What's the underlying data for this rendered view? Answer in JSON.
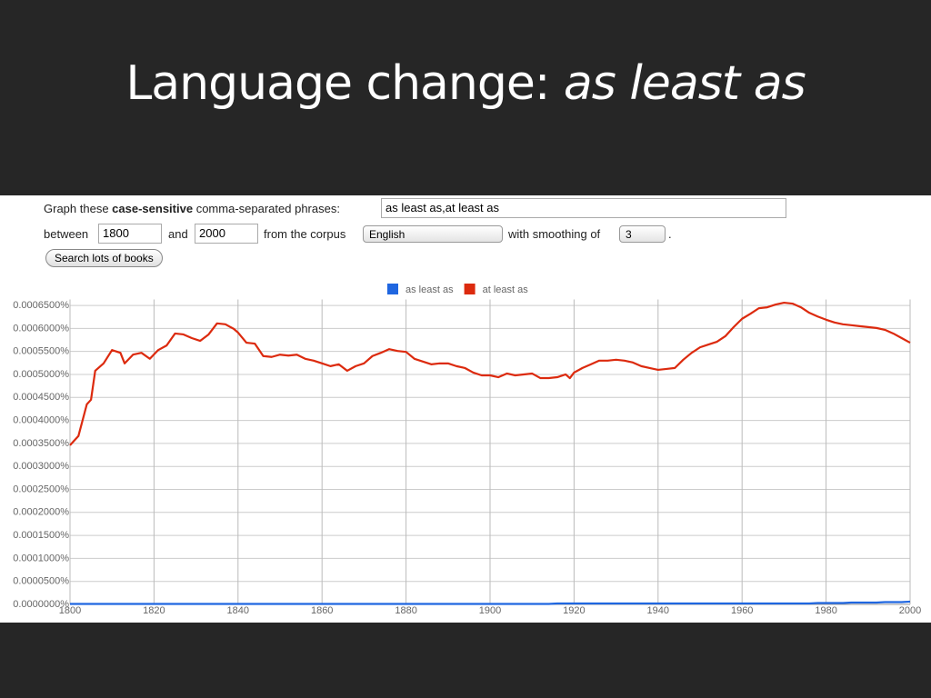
{
  "slide": {
    "title": "Language change:",
    "title_emphasis": "as least as"
  },
  "form": {
    "label_start": "Graph these",
    "label_bold": "case-sensitive",
    "label_end": "comma-separated phrases:",
    "phrases": "as least as,at least as",
    "between": "between",
    "from_year": "1800",
    "and": "and",
    "to_year": "2000",
    "corpus_label": "from the corpus",
    "corpus": "English",
    "smoothing_label": "with smoothing of",
    "smoothing": "3",
    "period": ".",
    "button": "Search lots of books"
  },
  "chart_data": {
    "type": "line",
    "x": [
      1800,
      1802,
      1804,
      1805,
      1806,
      1808,
      1810,
      1812,
      1813,
      1815,
      1817,
      1819,
      1821,
      1823,
      1825,
      1827,
      1829,
      1831,
      1833,
      1835,
      1837,
      1839,
      1840,
      1842,
      1844,
      1846,
      1848,
      1850,
      1852,
      1854,
      1856,
      1858,
      1860,
      1862,
      1864,
      1866,
      1868,
      1870,
      1872,
      1874,
      1876,
      1878,
      1880,
      1882,
      1884,
      1886,
      1888,
      1890,
      1892,
      1894,
      1896,
      1898,
      1900,
      1902,
      1904,
      1906,
      1908,
      1910,
      1912,
      1914,
      1916,
      1918,
      1919,
      1920,
      1922,
      1924,
      1926,
      1928,
      1930,
      1932,
      1934,
      1936,
      1938,
      1940,
      1942,
      1944,
      1946,
      1948,
      1950,
      1952,
      1954,
      1956,
      1958,
      1960,
      1962,
      1964,
      1966,
      1968,
      1970,
      1972,
      1974,
      1976,
      1978,
      1980,
      1982,
      1984,
      1986,
      1988,
      1990,
      1992,
      1994,
      1996,
      1998,
      2000
    ],
    "series": [
      {
        "name": "as least as",
        "color": "#1f66e0",
        "values": [
          1e-06,
          1e-06,
          1e-06,
          1e-06,
          1e-06,
          1e-06,
          1e-06,
          1e-06,
          1e-06,
          1e-06,
          1e-06,
          1e-06,
          1e-06,
          1e-06,
          1e-06,
          1e-06,
          1e-06,
          1e-06,
          1e-06,
          1e-06,
          1e-06,
          1e-06,
          1e-06,
          1e-06,
          1e-06,
          1e-06,
          1e-06,
          1e-06,
          1e-06,
          1e-06,
          1e-06,
          1e-06,
          1e-06,
          1e-06,
          1e-06,
          1e-06,
          1e-06,
          1e-06,
          1e-06,
          1e-06,
          1e-06,
          1e-06,
          1e-06,
          1e-06,
          1e-06,
          1e-06,
          1e-06,
          1e-06,
          1e-06,
          1e-06,
          1e-06,
          1e-06,
          1e-06,
          1e-06,
          1e-06,
          1e-06,
          1e-06,
          1e-06,
          1e-06,
          1e-06,
          2e-06,
          2e-06,
          2e-06,
          2e-06,
          2e-06,
          2e-06,
          2e-06,
          2e-06,
          2e-06,
          2e-06,
          2e-06,
          2e-06,
          2e-06,
          2e-06,
          2e-06,
          2e-06,
          2e-06,
          2e-06,
          2e-06,
          2e-06,
          2e-06,
          2e-06,
          2e-06,
          2e-06,
          2e-06,
          2e-06,
          2e-06,
          2e-06,
          2e-06,
          2e-06,
          2e-06,
          2e-06,
          3e-06,
          3e-06,
          3e-06,
          3e-06,
          4e-06,
          4e-06,
          4e-06,
          4e-06,
          5e-06,
          5e-06,
          5e-06,
          6e-06
        ]
      },
      {
        "name": "at least as",
        "color": "#dc2a0e",
        "values": [
          0.000346,
          0.000366,
          0.000435,
          0.000445,
          0.000508,
          0.000524,
          0.000553,
          0.000547,
          0.000524,
          0.000543,
          0.000547,
          0.000534,
          0.000553,
          0.000563,
          0.000589,
          0.000587,
          0.000579,
          0.000573,
          0.000587,
          0.000611,
          0.000609,
          0.000599,
          0.000591,
          0.000569,
          0.000567,
          0.00054,
          0.000538,
          0.000543,
          0.000541,
          0.000543,
          0.000534,
          0.00053,
          0.000524,
          0.000518,
          0.000522,
          0.000508,
          0.000518,
          0.000524,
          0.00054,
          0.000547,
          0.000555,
          0.000551,
          0.000549,
          0.000534,
          0.000528,
          0.000522,
          0.000524,
          0.000524,
          0.000518,
          0.000514,
          0.000504,
          0.000498,
          0.000498,
          0.000494,
          0.000502,
          0.000498,
          0.0005,
          0.000502,
          0.000492,
          0.000492,
          0.000494,
          0.0005,
          0.000492,
          0.000504,
          0.000514,
          0.000522,
          0.00053,
          0.00053,
          0.000532,
          0.00053,
          0.000526,
          0.000518,
          0.000514,
          0.00051,
          0.000512,
          0.000514,
          0.000532,
          0.000547,
          0.000559,
          0.000565,
          0.000571,
          0.000583,
          0.000603,
          0.000621,
          0.000632,
          0.000644,
          0.000646,
          0.000652,
          0.000656,
          0.000654,
          0.000646,
          0.000634,
          0.000626,
          0.000619,
          0.000613,
          0.000609,
          0.000607,
          0.000605,
          0.000603,
          0.000601,
          0.000597,
          0.000589,
          0.000579,
          0.000569
        ]
      }
    ],
    "xlim": [
      1800,
      2000
    ],
    "xticks": [
      1800,
      1820,
      1840,
      1860,
      1880,
      1900,
      1920,
      1940,
      1960,
      1980,
      2000
    ],
    "ylim": [
      0,
      0.000663
    ],
    "yticks": [
      {
        "value": 0,
        "label": "0.0000000%"
      },
      {
        "value": 5e-05,
        "label": "0.0000500%"
      },
      {
        "value": 0.0001,
        "label": "0.0001000%"
      },
      {
        "value": 0.00015,
        "label": "0.0001500%"
      },
      {
        "value": 0.0002,
        "label": "0.0002000%"
      },
      {
        "value": 0.00025,
        "label": "0.0002500%"
      },
      {
        "value": 0.0003,
        "label": "0.0003000%"
      },
      {
        "value": 0.00035,
        "label": "0.0003500%"
      },
      {
        "value": 0.0004,
        "label": "0.0004000%"
      },
      {
        "value": 0.00045,
        "label": "0.0004500%"
      },
      {
        "value": 0.0005,
        "label": "0.0005000%"
      },
      {
        "value": 0.00055,
        "label": "0.0005500%"
      },
      {
        "value": 0.0006,
        "label": "0.0006000%"
      },
      {
        "value": 0.00065,
        "label": "0.0006500%"
      }
    ],
    "grid": true,
    "legend": "top"
  }
}
